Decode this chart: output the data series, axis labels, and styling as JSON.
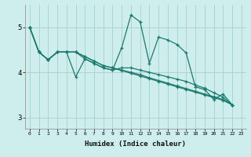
{
  "bg_color": "#ceeeed",
  "grid_color": "#aed4d2",
  "line_color": "#1a7a6e",
  "xlabel": "Humidex (Indice chaleur)",
  "xlim": [
    -0.5,
    23.5
  ],
  "ylim": [
    2.75,
    5.5
  ],
  "yticks": [
    3,
    4,
    5
  ],
  "xticks": [
    0,
    1,
    2,
    3,
    4,
    5,
    6,
    7,
    8,
    9,
    10,
    11,
    12,
    13,
    14,
    15,
    16,
    17,
    18,
    19,
    20,
    21,
    22,
    23
  ],
  "series": [
    [
      5.0,
      4.45,
      4.28,
      4.45,
      4.45,
      3.9,
      4.3,
      4.2,
      4.1,
      4.05,
      4.55,
      5.27,
      5.12,
      4.2,
      4.78,
      4.72,
      4.62,
      4.43,
      3.68,
      3.62,
      3.4,
      3.52,
      3.28
    ],
    [
      5.0,
      4.45,
      4.28,
      4.45,
      4.45,
      4.45,
      4.3,
      4.2,
      4.1,
      4.05,
      4.1,
      4.1,
      4.05,
      4.0,
      3.95,
      3.9,
      3.85,
      3.8,
      3.72,
      3.65,
      3.55,
      3.45,
      3.28
    ],
    [
      5.0,
      4.45,
      4.28,
      4.45,
      4.45,
      4.45,
      4.35,
      4.25,
      4.15,
      4.1,
      4.05,
      4.0,
      3.95,
      3.88,
      3.82,
      3.76,
      3.7,
      3.64,
      3.58,
      3.52,
      3.46,
      3.4,
      3.28
    ],
    [
      5.0,
      4.45,
      4.28,
      4.45,
      4.45,
      4.45,
      4.35,
      4.25,
      4.15,
      4.1,
      4.04,
      3.98,
      3.92,
      3.86,
      3.8,
      3.74,
      3.68,
      3.62,
      3.56,
      3.5,
      3.44,
      3.38,
      3.28
    ]
  ]
}
